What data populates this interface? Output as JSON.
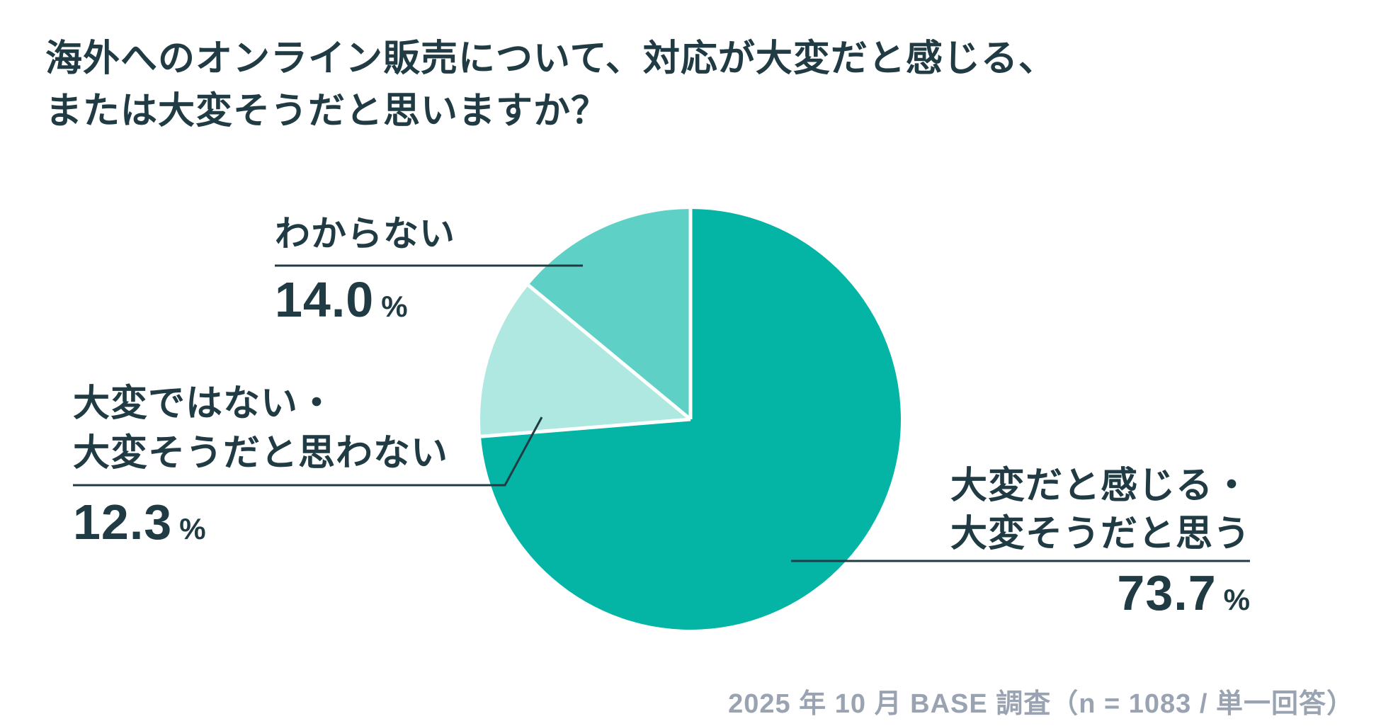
{
  "title": {
    "line1": "海外へのオンライン販売について、対応が大変だと感じる、",
    "line2": "または大変そうだと思いますか？"
  },
  "chart_data": {
    "type": "pie",
    "title": "海外へのオンライン販売について、対応が大変だと感じる、または大変そうだと思いますか？",
    "start_angle_deg": 0,
    "direction": "clockwise",
    "unit": "%",
    "slices": [
      {
        "label": "大変だと感じる・大変そうだと思う",
        "value": 73.7,
        "color": "#04b4a5"
      },
      {
        "label": "大変ではない・大変そうだと思わない",
        "value": 12.3,
        "color": "#aee8e1"
      },
      {
        "label": "わからない",
        "value": 14.0,
        "color": "#5ed0c5"
      }
    ],
    "separator_color": "#ffffff",
    "legend": "none (direct callout labels with leader lines)",
    "source_note": "2025 年 10 月 BASE 調査（n = 1083 / 単一回答）"
  },
  "callouts": {
    "unknown": {
      "label": "わからない",
      "value": "14.0",
      "unit": "%"
    },
    "not_hard": {
      "label_line1": "大変ではない・",
      "label_line2": "大変そうだと思わない",
      "value": "12.3",
      "unit": "%"
    },
    "hard": {
      "label_line1": "大変だと感じる・",
      "label_line2": "大変そうだと思う",
      "value": "73.7",
      "unit": "%"
    }
  },
  "footer": {
    "source": "2025 年 10 月 BASE 調査（n = 1083 / 単一回答）"
  },
  "colors": {
    "text": "#203b43",
    "leader_line": "#203b43",
    "footer_text": "#9aa3b2",
    "background": "#ffffff"
  }
}
